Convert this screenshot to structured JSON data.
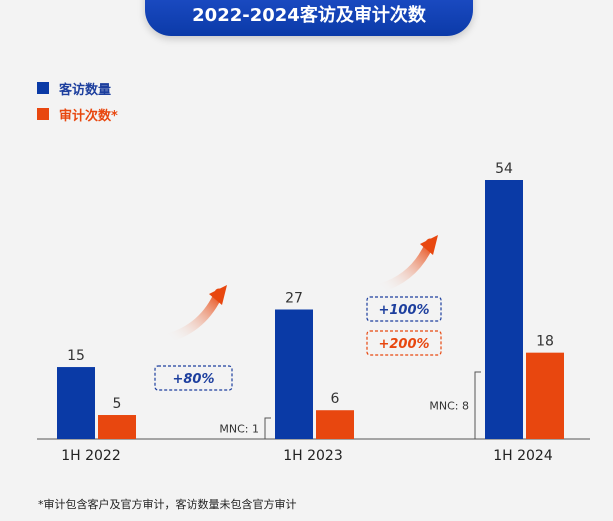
{
  "banner": {
    "title": "2022-2024客访及审计次数"
  },
  "legend": [
    {
      "label": "客访数量",
      "color": "#0a3aa6"
    },
    {
      "label": "审计次数*",
      "color": "#e8470f"
    }
  ],
  "footnote": "*审计包含客户及官方审计，客访数量未包含官方审计",
  "chart_data": {
    "type": "bar",
    "categories": [
      "1H 2022",
      "1H 2023",
      "1H 2024"
    ],
    "series": [
      {
        "name": "客访数量",
        "values": [
          15,
          27,
          54
        ],
        "color": "#0a3aa6"
      },
      {
        "name": "审计次数*",
        "values": [
          5,
          6,
          18
        ],
        "color": "#e8470f"
      }
    ],
    "mnc": [
      {
        "category": "1H 2023",
        "label": "MNC:",
        "value": "1"
      },
      {
        "category": "1H 2024",
        "label": "MNC:",
        "value": "8"
      }
    ],
    "growth_badges": [
      {
        "between": [
          "1H 2022",
          "1H 2023"
        ],
        "text": "+80%",
        "color": "#1d3f9e"
      },
      {
        "between": [
          "1H 2023",
          "1H 2024"
        ],
        "text": "+100%",
        "color": "#1d3f9e"
      },
      {
        "between": [
          "1H 2023",
          "1H 2024"
        ],
        "text": "+200%",
        "color": "#e8470f"
      }
    ],
    "ylim": [
      0,
      54
    ]
  }
}
